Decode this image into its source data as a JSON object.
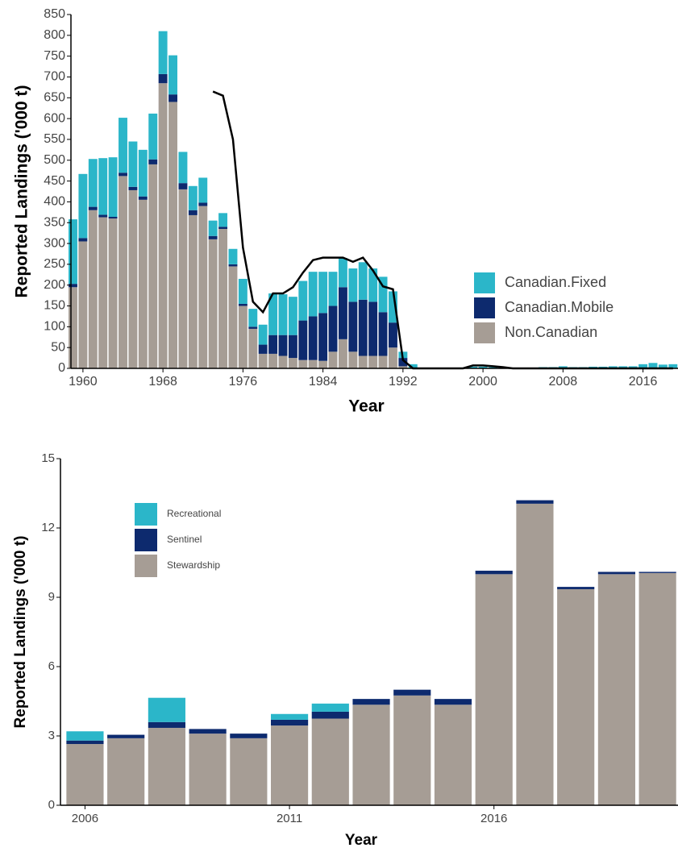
{
  "chart_data": [
    {
      "type": "bar",
      "stacked": true,
      "x_label": "Year",
      "y_label": "Reported Landings ('000 t)",
      "x": [
        1959,
        1960,
        1961,
        1962,
        1963,
        1964,
        1965,
        1966,
        1967,
        1968,
        1969,
        1970,
        1971,
        1972,
        1973,
        1974,
        1975,
        1976,
        1977,
        1978,
        1979,
        1980,
        1981,
        1982,
        1983,
        1984,
        1985,
        1986,
        1987,
        1988,
        1989,
        1990,
        1991,
        1992,
        1993,
        1994,
        1995,
        1996,
        1997,
        1998,
        1999,
        2000,
        2001,
        2002,
        2003,
        2004,
        2005,
        2006,
        2007,
        2008,
        2009,
        2010,
        2011,
        2012,
        2013,
        2014,
        2015,
        2016,
        2017,
        2018,
        2019
      ],
      "series": [
        {
          "name": "Non.Canadian",
          "color": "#a69d95",
          "values": [
            195,
            305,
            380,
            363,
            360,
            462,
            428,
            405,
            490,
            685,
            640,
            430,
            368,
            390,
            310,
            335,
            245,
            150,
            95,
            35,
            35,
            30,
            25,
            20,
            20,
            18,
            40,
            70,
            40,
            30,
            30,
            30,
            50,
            5,
            0,
            0,
            0,
            0,
            0,
            0,
            0,
            0,
            0,
            0,
            0,
            0,
            0,
            0,
            0,
            0,
            0,
            0,
            0,
            0,
            0,
            0,
            0,
            0,
            0,
            0,
            0
          ]
        },
        {
          "name": "Canadian.Mobile",
          "color": "#0d2a6e",
          "values": [
            8,
            8,
            8,
            6,
            4,
            8,
            8,
            8,
            12,
            22,
            18,
            15,
            12,
            8,
            8,
            5,
            5,
            5,
            5,
            22,
            45,
            50,
            55,
            95,
            105,
            115,
            110,
            125,
            120,
            135,
            130,
            105,
            60,
            20,
            0,
            0,
            0,
            0,
            0,
            0,
            0,
            0,
            0,
            0,
            0,
            0,
            0,
            0,
            0,
            0,
            0,
            0,
            0,
            0,
            0,
            0,
            0,
            0,
            0,
            0,
            0
          ]
        },
        {
          "name": "Canadian.Fixed",
          "color": "#2bb6c9",
          "values": [
            155,
            154,
            115,
            136,
            143,
            132,
            109,
            112,
            110,
            103,
            94,
            75,
            58,
            60,
            37,
            33,
            37,
            60,
            43,
            48,
            100,
            98,
            92,
            95,
            107,
            99,
            82,
            70,
            80,
            90,
            80,
            85,
            75,
            15,
            10,
            1,
            0.5,
            0.5,
            1,
            2,
            4,
            4,
            3,
            2,
            1,
            1,
            1,
            3,
            3,
            5,
            3,
            3,
            4,
            4,
            5,
            5,
            5,
            10,
            13,
            9,
            10
          ]
        }
      ],
      "lines": [
        {
          "color": "#000000",
          "values": [
            null,
            null,
            null,
            null,
            null,
            null,
            null,
            null,
            null,
            null,
            null,
            null,
            null,
            null,
            665,
            655,
            550,
            290,
            160,
            135,
            180,
            180,
            195,
            230,
            260,
            266,
            266,
            266,
            256,
            266,
            235,
            197,
            190,
            20,
            0,
            0,
            0,
            0,
            0,
            0,
            7,
            7,
            5,
            3,
            0,
            0,
            0,
            0,
            0,
            0,
            0,
            0,
            0,
            0,
            0,
            0,
            0,
            0,
            0,
            0,
            0
          ]
        }
      ],
      "xlim": [
        1958.8,
        2019.5
      ],
      "xticks": [
        1960,
        1968,
        1976,
        1984,
        1992,
        2000,
        2008,
        2016
      ],
      "ylim": [
        0,
        850
      ],
      "yticks": [
        0,
        50,
        100,
        150,
        200,
        250,
        300,
        350,
        400,
        450,
        500,
        550,
        600,
        650,
        700,
        750,
        800,
        850
      ],
      "legend": "right"
    },
    {
      "type": "bar",
      "stacked": true,
      "x_label": "Year",
      "y_label": "Reported Landings ('000 t)",
      "x": [
        2006,
        2007,
        2008,
        2009,
        2010,
        2011,
        2012,
        2013,
        2014,
        2015,
        2016,
        2017,
        2018,
        2019,
        2020
      ],
      "series": [
        {
          "name": "Stewardship",
          "color": "#a69d95",
          "values": [
            2.65,
            2.9,
            3.35,
            3.1,
            2.9,
            3.45,
            3.75,
            4.35,
            4.75,
            4.35,
            10.0,
            13.05,
            9.35,
            10.0,
            10.05
          ]
        },
        {
          "name": "Sentinel",
          "color": "#0d2a6e",
          "values": [
            0.15,
            0.15,
            0.25,
            0.2,
            0.2,
            0.25,
            0.3,
            0.25,
            0.25,
            0.25,
            0.15,
            0.15,
            0.1,
            0.1,
            0.05
          ]
        },
        {
          "name": "Recreational",
          "color": "#2bb6c9",
          "values": [
            0.4,
            0,
            1.05,
            0,
            0,
            0.25,
            0.35,
            0,
            0,
            0,
            0,
            0,
            0,
            0,
            0
          ]
        }
      ],
      "xlim": [
        2005.4,
        2020.5
      ],
      "xticks": [
        2006,
        2011,
        2016
      ],
      "ylim": [
        0,
        15
      ],
      "yticks": [
        0,
        3,
        6,
        9,
        12,
        15
      ],
      "legend": "top-left"
    }
  ]
}
